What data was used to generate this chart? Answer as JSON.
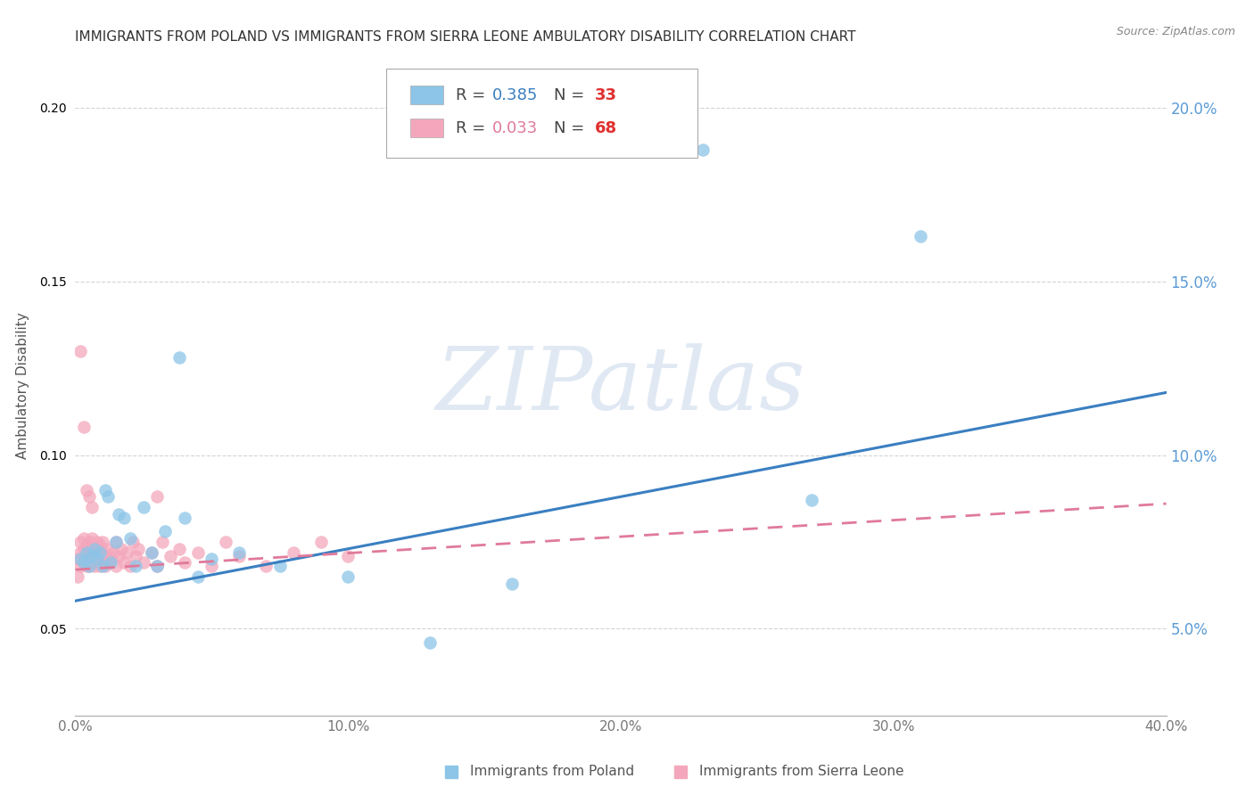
{
  "title": "IMMIGRANTS FROM POLAND VS IMMIGRANTS FROM SIERRA LEONE AMBULATORY DISABILITY CORRELATION CHART",
  "source": "Source: ZipAtlas.com",
  "ylabel": "Ambulatory Disability",
  "xmin": 0.0,
  "xmax": 0.4,
  "ymin": 0.025,
  "ymax": 0.215,
  "poland_color": "#8cc5e8",
  "sierra_leone_color": "#f4a7bc",
  "poland_line_color": "#3a7fc1",
  "sierra_leone_line_color": "#e07a9a",
  "poland_R": 0.385,
  "poland_N": 33,
  "sierra_leone_R": 0.033,
  "sierra_leone_N": 68,
  "poland_line_start_y": 0.058,
  "poland_line_end_y": 0.118,
  "sierra_leone_line_start_y": 0.067,
  "sierra_leone_line_end_y": 0.086,
  "poland_x": [
    0.002,
    0.003,
    0.004,
    0.005,
    0.006,
    0.007,
    0.008,
    0.009,
    0.01,
    0.011,
    0.012,
    0.013,
    0.015,
    0.016,
    0.018,
    0.02,
    0.022,
    0.025,
    0.028,
    0.03,
    0.033,
    0.038,
    0.04,
    0.045,
    0.05,
    0.06,
    0.075,
    0.1,
    0.13,
    0.16,
    0.23,
    0.27,
    0.31
  ],
  "poland_y": [
    0.07,
    0.069,
    0.072,
    0.068,
    0.071,
    0.073,
    0.07,
    0.072,
    0.068,
    0.09,
    0.088,
    0.069,
    0.075,
    0.083,
    0.082,
    0.076,
    0.068,
    0.085,
    0.072,
    0.068,
    0.078,
    0.128,
    0.082,
    0.065,
    0.07,
    0.072,
    0.068,
    0.065,
    0.046,
    0.063,
    0.188,
    0.087,
    0.163
  ],
  "sierra_leone_x": [
    0.001,
    0.001,
    0.002,
    0.002,
    0.002,
    0.003,
    0.003,
    0.003,
    0.004,
    0.004,
    0.004,
    0.005,
    0.005,
    0.005,
    0.005,
    0.006,
    0.006,
    0.006,
    0.006,
    0.007,
    0.007,
    0.007,
    0.008,
    0.008,
    0.008,
    0.009,
    0.009,
    0.009,
    0.01,
    0.01,
    0.01,
    0.011,
    0.011,
    0.012,
    0.012,
    0.013,
    0.014,
    0.015,
    0.015,
    0.016,
    0.017,
    0.018,
    0.019,
    0.02,
    0.021,
    0.022,
    0.023,
    0.025,
    0.028,
    0.03,
    0.032,
    0.035,
    0.038,
    0.04,
    0.045,
    0.05,
    0.055,
    0.06,
    0.07,
    0.08,
    0.09,
    0.1,
    0.002,
    0.003,
    0.004,
    0.005,
    0.006,
    0.03
  ],
  "sierra_leone_y": [
    0.065,
    0.07,
    0.068,
    0.072,
    0.075,
    0.069,
    0.073,
    0.076,
    0.068,
    0.071,
    0.074,
    0.07,
    0.072,
    0.068,
    0.075,
    0.069,
    0.071,
    0.073,
    0.076,
    0.068,
    0.07,
    0.072,
    0.069,
    0.073,
    0.075,
    0.068,
    0.071,
    0.074,
    0.07,
    0.072,
    0.075,
    0.068,
    0.071,
    0.069,
    0.073,
    0.07,
    0.072,
    0.068,
    0.075,
    0.071,
    0.073,
    0.069,
    0.072,
    0.068,
    0.075,
    0.071,
    0.073,
    0.069,
    0.072,
    0.068,
    0.075,
    0.071,
    0.073,
    0.069,
    0.072,
    0.068,
    0.075,
    0.071,
    0.068,
    0.072,
    0.075,
    0.071,
    0.13,
    0.108,
    0.09,
    0.088,
    0.085,
    0.088
  ],
  "watermark_text": "ZIPatlas",
  "background_color": "#ffffff",
  "grid_color": "#d0d0d0"
}
